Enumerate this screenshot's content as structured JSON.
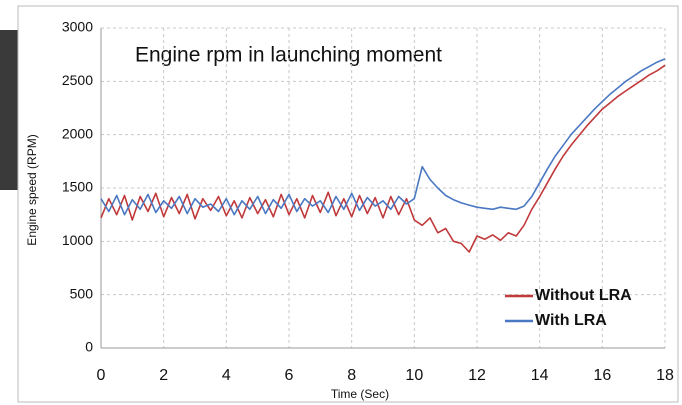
{
  "chart_data": {
    "type": "line",
    "title": "Engine rpm in launching moment",
    "x_label": "Time (Sec)",
    "y_label": "Engine speed (RPM)",
    "x": [
      0,
      0.25,
      0.5,
      0.75,
      1,
      1.25,
      1.5,
      1.75,
      2,
      2.25,
      2.5,
      2.75,
      3,
      3.25,
      3.5,
      3.75,
      4,
      4.25,
      4.5,
      4.75,
      5,
      5.25,
      5.5,
      5.75,
      6,
      6.25,
      6.5,
      6.75,
      7,
      7.25,
      7.5,
      7.75,
      8,
      8.25,
      8.5,
      8.75,
      9,
      9.25,
      9.5,
      9.75,
      10,
      10.25,
      10.5,
      10.75,
      11,
      11.25,
      11.5,
      11.75,
      12,
      12.25,
      12.5,
      12.75,
      13,
      13.25,
      13.5,
      13.75,
      14,
      14.25,
      14.5,
      14.75,
      15,
      15.25,
      15.5,
      15.75,
      16,
      16.25,
      16.5,
      16.75,
      17,
      17.25,
      17.5,
      17.75,
      18
    ],
    "series": [
      {
        "name": "Without LRA",
        "color": "#c0393b",
        "values": [
          1220,
          1400,
          1250,
          1430,
          1200,
          1420,
          1280,
          1450,
          1230,
          1410,
          1260,
          1440,
          1210,
          1400,
          1290,
          1420,
          1240,
          1380,
          1220,
          1410,
          1260,
          1390,
          1230,
          1440,
          1250,
          1400,
          1220,
          1430,
          1270,
          1460,
          1240,
          1400,
          1230,
          1430,
          1260,
          1410,
          1220,
          1420,
          1250,
          1400,
          1200,
          1150,
          1220,
          1080,
          1120,
          1000,
          980,
          900,
          1050,
          1020,
          1060,
          1010,
          1080,
          1050,
          1150,
          1300,
          1420,
          1550,
          1680,
          1800,
          1900,
          1990,
          2080,
          2160,
          2240,
          2300,
          2360,
          2410,
          2460,
          2510,
          2560,
          2600,
          2650
        ]
      },
      {
        "name": "With LRA",
        "color": "#4a78c2",
        "values": [
          1400,
          1280,
          1430,
          1250,
          1390,
          1300,
          1440,
          1270,
          1380,
          1310,
          1420,
          1260,
          1400,
          1320,
          1350,
          1280,
          1400,
          1250,
          1380,
          1300,
          1420,
          1260,
          1390,
          1310,
          1440,
          1280,
          1400,
          1330,
          1380,
          1270,
          1420,
          1300,
          1450,
          1290,
          1410,
          1330,
          1380,
          1300,
          1420,
          1350,
          1400,
          1700,
          1580,
          1500,
          1430,
          1390,
          1360,
          1340,
          1320,
          1310,
          1300,
          1320,
          1310,
          1300,
          1330,
          1420,
          1550,
          1680,
          1800,
          1900,
          2000,
          2080,
          2160,
          2240,
          2310,
          2380,
          2440,
          2500,
          2550,
          2600,
          2640,
          2680,
          2710
        ]
      }
    ],
    "xlim": [
      0,
      18
    ],
    "xticks": [
      0,
      2,
      4,
      6,
      8,
      10,
      12,
      14,
      16,
      18
    ],
    "ylim": [
      0,
      3000
    ],
    "yticks": [
      0,
      500,
      1000,
      1500,
      2000,
      2500,
      3000
    ],
    "grid": true,
    "legend": "lower right"
  }
}
